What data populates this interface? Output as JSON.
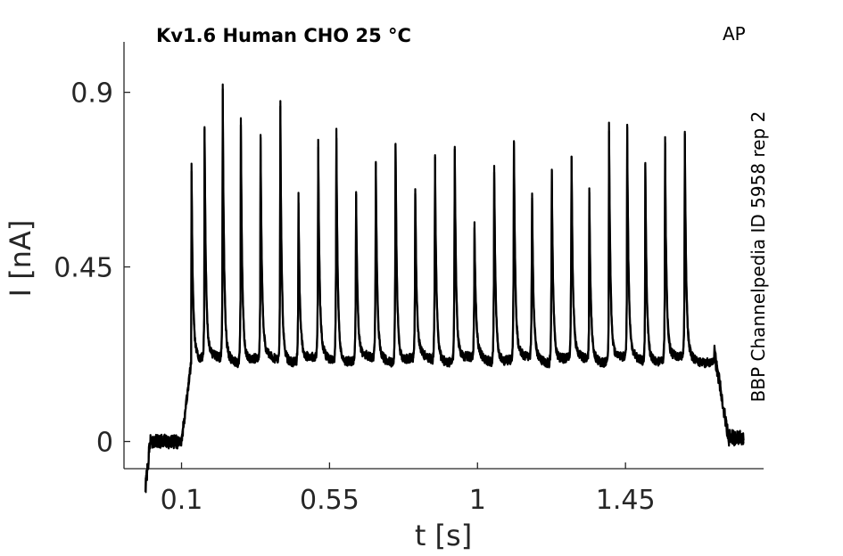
{
  "chart_data": {
    "type": "line",
    "title": "Kv1.6  Human  CHO  25 °C",
    "corner_label": "AP",
    "side_label": "BBP Channelpedia ID 5958 rep 2",
    "xlabel": "t [s]",
    "ylabel": "I [nA]",
    "xlim": [
      -0.075,
      1.87
    ],
    "ylim": [
      -0.07,
      1.03
    ],
    "xticks": [
      0.1,
      0.55,
      1,
      1.45
    ],
    "xtick_labels": [
      "0.1",
      "0.55",
      "1",
      "1.45"
    ],
    "yticks": [
      0,
      0.45,
      0.9
    ],
    "ytick_labels": [
      "0",
      "0.45",
      "0.9"
    ],
    "grid": false,
    "baseline_nA": 0.0,
    "step_on_s": 0.1,
    "step_off_s": 1.72,
    "plateau_nA": 0.23,
    "spikes": [
      {
        "t": 0.13,
        "peak": 0.72
      },
      {
        "t": 0.17,
        "peak": 0.76
      },
      {
        "t": 0.225,
        "peak": 0.92
      },
      {
        "t": 0.28,
        "peak": 0.85
      },
      {
        "t": 0.34,
        "peak": 0.79
      },
      {
        "t": 0.4,
        "peak": 0.9
      },
      {
        "t": 0.455,
        "peak": 0.66
      },
      {
        "t": 0.515,
        "peak": 0.81
      },
      {
        "t": 0.57,
        "peak": 0.89
      },
      {
        "t": 0.63,
        "peak": 0.69
      },
      {
        "t": 0.69,
        "peak": 0.78
      },
      {
        "t": 0.75,
        "peak": 0.86
      },
      {
        "t": 0.81,
        "peak": 0.69
      },
      {
        "t": 0.87,
        "peak": 0.81
      },
      {
        "t": 0.93,
        "peak": 0.83
      },
      {
        "t": 0.99,
        "peak": 0.59
      },
      {
        "t": 1.05,
        "peak": 0.78
      },
      {
        "t": 1.11,
        "peak": 0.85
      },
      {
        "t": 1.165,
        "peak": 0.71
      },
      {
        "t": 1.225,
        "peak": 0.8
      },
      {
        "t": 1.285,
        "peak": 0.83
      },
      {
        "t": 1.34,
        "peak": 0.62
      },
      {
        "t": 1.4,
        "peak": 0.78
      },
      {
        "t": 1.455,
        "peak": 0.8
      },
      {
        "t": 1.51,
        "peak": 0.73
      },
      {
        "t": 1.57,
        "peak": 0.79
      },
      {
        "t": 1.63,
        "peak": 0.81
      }
    ],
    "series": [
      {
        "peak_scale": 1.0,
        "noise_seed": 7
      },
      {
        "peak_scale": 0.985,
        "noise_seed": 19
      }
    ]
  }
}
